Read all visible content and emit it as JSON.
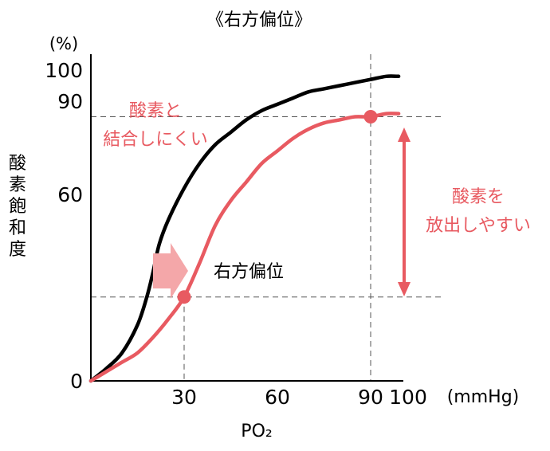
{
  "chart_data": {
    "type": "line",
    "title": "《右方偏位》",
    "xlabel": "PO₂",
    "x_unit": "(mmHg)",
    "ylabel": "酸素飽和度",
    "y_unit": "(%)",
    "xlim": [
      0,
      100
    ],
    "ylim": [
      0,
      100
    ],
    "x_ticks": [
      "30",
      "60",
      "90",
      "100"
    ],
    "y_ticks": [
      "0",
      "60",
      "90",
      "100"
    ],
    "series": [
      {
        "color": "#000000",
        "x": [
          0,
          5,
          10,
          15,
          18,
          20,
          22,
          25,
          30,
          35,
          40,
          45,
          50,
          55,
          60,
          65,
          70,
          75,
          80,
          85,
          90,
          95,
          99
        ],
        "y": [
          0,
          4,
          9,
          18,
          27,
          35,
          44,
          52,
          62,
          70,
          76,
          80,
          84,
          87,
          89,
          91,
          93,
          94,
          95,
          96,
          97,
          98,
          98
        ]
      },
      {
        "color": "#e85a61",
        "x": [
          0,
          5,
          10,
          15,
          20,
          25,
          30,
          35,
          40,
          45,
          50,
          55,
          60,
          65,
          70,
          75,
          80,
          85,
          90,
          95,
          99
        ],
        "y": [
          0,
          3,
          6,
          9,
          14,
          20,
          27,
          38,
          50,
          58,
          64,
          70,
          74,
          78,
          81,
          83,
          84,
          85,
          85,
          86,
          86
        ]
      }
    ],
    "points": [
      {
        "x": 30,
        "y": 27,
        "color": "#e85a61"
      },
      {
        "x": 90,
        "y": 85,
        "color": "#e85a61"
      }
    ],
    "annotations": {
      "curve_label": [
        "酸素と",
        "結合しにくい"
      ],
      "shift_label": "右方偏位",
      "release_label": [
        "酸素を",
        "放出しやすい"
      ]
    },
    "colors": {
      "red": "#e85a61",
      "arrow_pink": "#f4a7a9",
      "black": "#000000",
      "guide": "#555555"
    }
  }
}
